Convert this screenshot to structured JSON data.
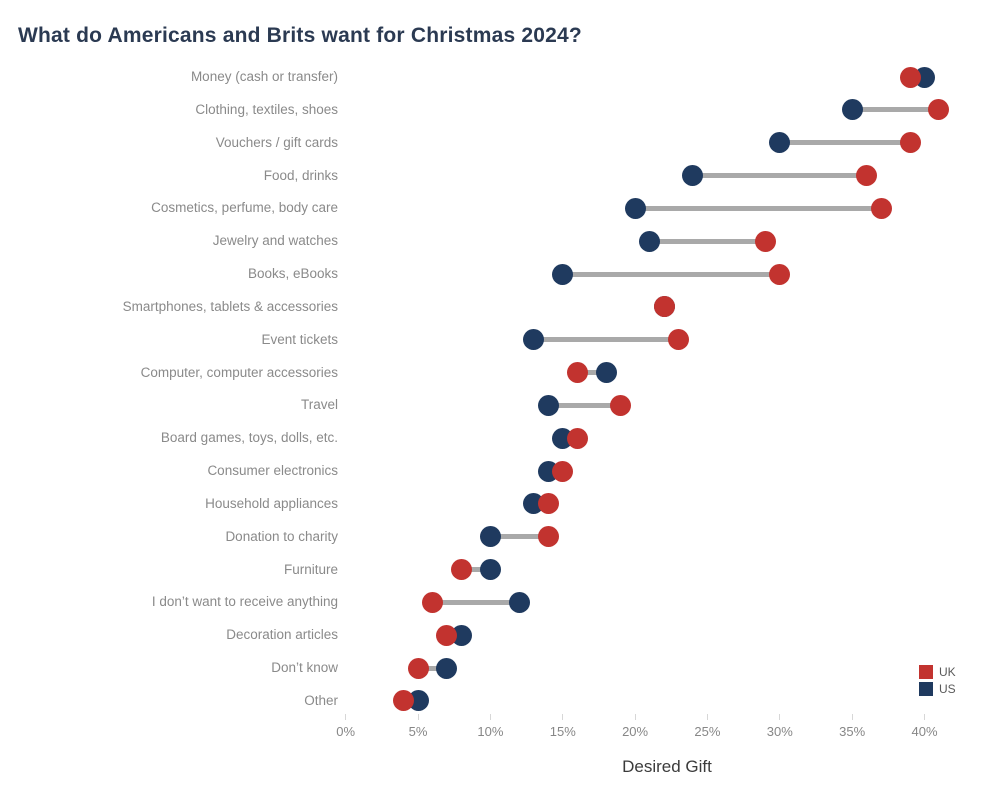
{
  "title": "What do Americans and Brits want for Christmas 2024?",
  "xaxis": {
    "label": "Desired Gift",
    "ticks": [
      "0%",
      "5%",
      "10%",
      "15%",
      "20%",
      "25%",
      "30%",
      "35%",
      "40%"
    ]
  },
  "legend": [
    {
      "label": "UK",
      "color": "#c2332f"
    },
    {
      "label": "US",
      "color": "#1f3a5f"
    }
  ],
  "colors": {
    "uk": "#c2332f",
    "us": "#1f3a5f",
    "connector": "#a9a9a9",
    "title_text": "#2b3a52"
  },
  "chart_data": {
    "type": "scatter",
    "subtype": "dumbbell",
    "title": "What do Americans and Brits want for Christmas 2024?",
    "xlabel": "Desired Gift",
    "ylabel": "",
    "xlim": [
      0,
      43
    ],
    "x_ticks_percent": [
      0,
      5,
      10,
      15,
      20,
      25,
      30,
      35,
      40
    ],
    "grid": false,
    "legend_position": "bottom-right",
    "categories": [
      "Money (cash or transfer)",
      "Clothing, textiles, shoes",
      "Vouchers / gift cards",
      "Food, drinks",
      "Cosmetics, perfume, body care",
      "Jewelry and watches",
      "Books, eBooks",
      "Smartphones, tablets & accessories",
      "Event tickets",
      "Computer, computer accessories",
      "Travel",
      "Board games, toys, dolls, etc.",
      "Consumer electronics",
      "Household appliances",
      "Donation to charity",
      "Furniture",
      "I don’t want to receive anything",
      "Decoration articles",
      "Don’t know",
      "Other"
    ],
    "series": [
      {
        "name": "UK",
        "color": "#c2332f",
        "values": [
          39,
          41,
          39,
          36,
          37,
          29,
          30,
          22,
          23,
          16,
          19,
          16,
          15,
          14,
          14,
          8,
          6,
          7,
          5,
          4
        ]
      },
      {
        "name": "US",
        "color": "#1f3a5f",
        "values": [
          40,
          35,
          30,
          24,
          20,
          21,
          15,
          22,
          13,
          18,
          14,
          15,
          14,
          13,
          10,
          10,
          12,
          8,
          7,
          5
        ]
      }
    ]
  }
}
